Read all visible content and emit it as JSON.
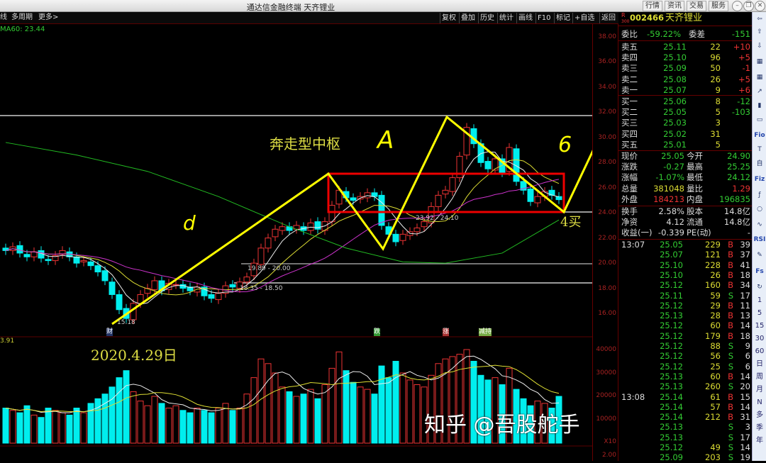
{
  "window": {
    "title": "通达信金融终端 天齐锂业",
    "top_buttons": [
      "行情",
      "资讯",
      "交易",
      "服务"
    ],
    "controls": [
      "minimize",
      "restore",
      "close"
    ]
  },
  "toolbar": {
    "left": [
      "线",
      "多周期",
      "更多>"
    ],
    "right": [
      "复权",
      "叠加",
      "历史",
      "统计",
      "画线",
      "F10",
      "标记",
      "+自选",
      "返回"
    ]
  },
  "indicator": {
    "ma60": "MA60: 23.44",
    "vol_left": "3.91"
  },
  "stock": {
    "badge_r": "R",
    "badge_300": "300",
    "code": "002466",
    "name": "天齐锂业"
  },
  "order_book": {
    "weibi": {
      "label": "委比",
      "value": "-59.22%",
      "label2": "委差",
      "value2": "-151"
    },
    "sell": [
      {
        "l": "卖五",
        "p": "25.11",
        "v": "22",
        "c": "+10"
      },
      {
        "l": "卖四",
        "p": "25.10",
        "v": "96",
        "c": "+5"
      },
      {
        "l": "卖三",
        "p": "25.09",
        "v": "50",
        "c": "-1"
      },
      {
        "l": "卖二",
        "p": "25.08",
        "v": "26",
        "c": "+5"
      },
      {
        "l": "卖一",
        "p": "25.07",
        "v": "9",
        "c": "+6"
      }
    ],
    "buy": [
      {
        "l": "买一",
        "p": "25.06",
        "v": "8",
        "c": "-12"
      },
      {
        "l": "买二",
        "p": "25.05",
        "v": "5",
        "c": "-103"
      },
      {
        "l": "买三",
        "p": "25.03",
        "v": "3",
        "c": ""
      },
      {
        "l": "买四",
        "p": "25.02",
        "v": "31",
        "c": ""
      },
      {
        "l": "买五",
        "p": "25.01",
        "v": "5",
        "c": ""
      }
    ]
  },
  "quote": [
    {
      "l1": "现价",
      "v1": "25.05",
      "c1": "g",
      "l2": "今开",
      "v2": "24.90",
      "c2": "g"
    },
    {
      "l1": "涨跌",
      "v1": "-0.27",
      "c1": "g",
      "l2": "最高",
      "v2": "25.25",
      "c2": "g"
    },
    {
      "l1": "涨幅",
      "v1": "-1.07%",
      "c1": "g",
      "l2": "最低",
      "v2": "24.12",
      "c2": "g"
    },
    {
      "l1": "总量",
      "v1": "381048",
      "c1": "y",
      "l2": "量比",
      "v2": "1.29",
      "c2": "r"
    },
    {
      "l1": "外盘",
      "v1": "184213",
      "c1": "r",
      "l2": "内盘",
      "v2": "196835",
      "c2": "g"
    }
  ],
  "finance": [
    {
      "l1": "换手",
      "v1": "2.58%",
      "l2": "股本",
      "v2": "14.8亿"
    },
    {
      "l1": "净资",
      "v1": "4.12",
      "l2": "流通",
      "v2": "14.8亿"
    },
    {
      "l1": "收益(一)",
      "v1": "-0.339",
      "l2": "PE(动)",
      "v2": "-"
    }
  ],
  "trades": [
    {
      "t": "13:07",
      "p": "25.05",
      "v": "229",
      "d": "B",
      "n": "39"
    },
    {
      "t": "",
      "p": "25.07",
      "v": "121",
      "d": "B",
      "n": "37"
    },
    {
      "t": "",
      "p": "25.10",
      "v": "228",
      "d": "B",
      "n": "41"
    },
    {
      "t": "",
      "p": "25.10",
      "v": "26",
      "d": "B",
      "n": "18"
    },
    {
      "t": "",
      "p": "25.12",
      "v": "160",
      "d": "B",
      "n": "34"
    },
    {
      "t": "",
      "p": "25.11",
      "v": "59",
      "d": "S",
      "n": "17"
    },
    {
      "t": "",
      "p": "25.12",
      "v": "29",
      "d": "B",
      "n": "11"
    },
    {
      "t": "",
      "p": "25.13",
      "v": "28",
      "d": "B",
      "n": "13"
    },
    {
      "t": "",
      "p": "25.12",
      "v": "60",
      "d": "B",
      "n": "14"
    },
    {
      "t": "",
      "p": "25.12",
      "v": "179",
      "d": "B",
      "n": "18"
    },
    {
      "t": "",
      "p": "25.12",
      "v": "88",
      "d": "S",
      "n": "9"
    },
    {
      "t": "",
      "p": "25.12",
      "v": "56",
      "d": "S",
      "n": "6"
    },
    {
      "t": "",
      "p": "25.12",
      "v": "25",
      "d": "S",
      "n": "6"
    },
    {
      "t": "",
      "p": "25.13",
      "v": "60",
      "d": "B",
      "n": "14"
    },
    {
      "t": "",
      "p": "25.13",
      "v": "260",
      "d": "S",
      "n": "20"
    },
    {
      "t": "13:08",
      "p": "25.14",
      "v": "61",
      "d": "B",
      "n": "15"
    },
    {
      "t": "",
      "p": "25.14",
      "v": "57",
      "d": "B",
      "n": "14"
    },
    {
      "t": "",
      "p": "25.14",
      "v": "212",
      "d": "B",
      "n": "31"
    },
    {
      "t": "",
      "p": "25.13",
      "v": "",
      "d": "S",
      "n": "3"
    },
    {
      "t": "",
      "p": "25.13",
      "v": "",
      "d": "S",
      "n": "17"
    },
    {
      "t": "",
      "p": "25.12",
      "v": "49",
      "d": "S",
      "n": "14"
    },
    {
      "t": "",
      "p": "25.09",
      "v": "203",
      "d": "S",
      "n": "19"
    }
  ],
  "sidebar_periods": [
    "1",
    "5",
    "15",
    "30",
    "60",
    "日",
    "周",
    "月",
    "N",
    "多",
    "季",
    "年"
  ],
  "sidebar_icons": [
    "Fs",
    "RSI",
    "Fio",
    "Fiz"
  ],
  "annotations": {
    "title": "奔走型中枢",
    "a": "A",
    "b": "6",
    "left": "d",
    "buy4": "4买",
    "date": "2020.4.29日",
    "low": "15.18",
    "r1": "19.89 - 20.00",
    "r2": "18.35 - 18.50",
    "r3": "23.92 - 24.10",
    "m_cai": "财",
    "m_die": "跌",
    "m_zhang": "涨",
    "m_jian": "减持"
  },
  "watermark": "知乎 @吾股舵手",
  "chart_data": {
    "type": "candlestick",
    "price_axis": [
      "38.00",
      "36.00",
      "34.00",
      "32.00",
      "30.00",
      "28.00",
      "26.00",
      "24.00",
      "22.00",
      "20.00",
      "18.00",
      "16.00"
    ],
    "ylim": [
      15,
      39
    ],
    "volume_axis": [
      "40000",
      "30000",
      "20000",
      "10000"
    ],
    "volume_unit": "X10",
    "volume_bottom": "2.00",
    "closes": [
      21.0,
      21.3,
      20.8,
      20.5,
      20.9,
      20.4,
      20.2,
      20.6,
      21.0,
      20.5,
      20.0,
      20.2,
      19.8,
      19.3,
      18.6,
      17.5,
      16.3,
      15.6,
      16.8,
      17.5,
      18.0,
      18.6,
      17.8,
      18.4,
      18.3,
      18.0,
      17.8,
      18.1,
      17.4,
      17.2,
      17.6,
      18.2,
      18.1,
      18.5,
      18.9,
      20.0,
      21.2,
      22.0,
      22.7,
      22.9,
      22.6,
      23.0,
      22.6,
      23.2,
      22.7,
      23.3,
      24.6,
      25.8,
      25.2,
      25.0,
      25.3,
      25.6,
      25.3,
      23.0,
      22.3,
      21.7,
      22.3,
      22.5,
      22.8,
      23.3,
      24.5,
      25.4,
      25.8,
      26.8,
      28.5,
      30.8,
      29.5,
      28.0,
      27.5,
      28.3,
      27.2,
      29.2,
      26.5,
      25.8,
      24.9,
      25.3,
      25.7,
      25.4,
      25.05
    ],
    "volumes": [
      1500,
      1400,
      1300,
      1600,
      1200,
      1100,
      1500,
      1400,
      1300,
      1200,
      1500,
      1300,
      1700,
      1900,
      2100,
      2400,
      2800,
      3100,
      2200,
      1800,
      1600,
      2000,
      1700,
      1500,
      1600,
      1400,
      1300,
      1500,
      1400,
      1300,
      1500,
      1700,
      1400,
      1500,
      2100,
      2800,
      3600,
      3400,
      3000,
      2400,
      2200,
      2000,
      2100,
      2300,
      1900,
      2500,
      3200,
      3900,
      3100,
      2600,
      2400,
      2300,
      2100,
      3300,
      2800,
      3500,
      3000,
      2700,
      2500,
      2400,
      2900,
      3400,
      3600,
      3700,
      3800,
      4000,
      3500,
      2900,
      2700,
      2800,
      2500,
      3200,
      2300,
      1900,
      1600,
      1800,
      1700,
      1500,
      2000
    ],
    "ma60": [
      [
        0,
        29.6
      ],
      [
        10,
        28.6
      ],
      [
        20,
        27.3
      ],
      [
        30,
        25.3
      ],
      [
        40,
        22.9
      ],
      [
        48,
        21.2
      ],
      [
        56,
        20.1
      ],
      [
        62,
        20.0
      ],
      [
        70,
        20.8
      ],
      [
        78,
        23.44
      ]
    ]
  }
}
